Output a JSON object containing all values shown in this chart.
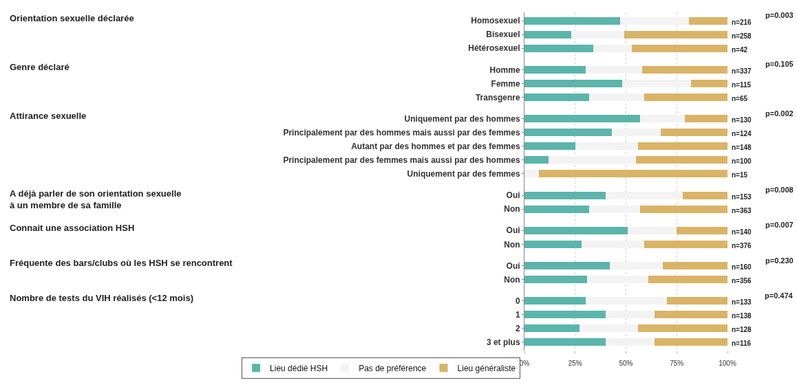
{
  "chart_data": {
    "type": "bar",
    "orientation": "horizontal",
    "stacked": true,
    "categories": [
      "Homosexuel",
      "Bisexuel",
      "Hétérosexuel",
      "Homme",
      "Femme",
      "Transgenre",
      "Uniquement par des hommes",
      "Principalement par des hommes mais aussi par des femmes",
      "Autant par des hommes et par des femmes",
      "Principalement par des femmes mais aussi par des hommes",
      "Uniquement par des femmes",
      "Oui",
      "Non",
      "Oui",
      "Non",
      "Oui",
      "Non",
      "0",
      "1",
      "2",
      "3 et plus"
    ],
    "series": [
      {
        "name": "Lieu dédié HSH",
        "color": "#5bb5ab",
        "values": [
          47,
          23,
          34,
          30,
          48,
          32,
          57,
          43,
          25,
          12,
          0,
          40,
          32,
          51,
          28,
          42,
          31,
          30,
          40,
          27,
          40
        ]
      },
      {
        "name": "Pas de préférence",
        "color": "#f3f3f3",
        "values": [
          34,
          26,
          19,
          28,
          34,
          27,
          22,
          24,
          31,
          43,
          7,
          38,
          25,
          24,
          31,
          26,
          30,
          40,
          24,
          29,
          24
        ]
      },
      {
        "name": "Lieu généraliste",
        "color": "#d9b466",
        "values": [
          19,
          51,
          47,
          42,
          18,
          41,
          21,
          33,
          44,
          45,
          93,
          22,
          43,
          25,
          41,
          32,
          39,
          30,
          36,
          44,
          36
        ]
      }
    ],
    "xlim": [
      0,
      100
    ],
    "xticks": [
      {
        "value": 0,
        "label": "0%"
      },
      {
        "value": 25,
        "label": "25%"
      },
      {
        "value": 50,
        "label": "50%"
      },
      {
        "value": 75,
        "label": "75%"
      },
      {
        "value": 100,
        "label": "100%"
      }
    ],
    "grid": "x",
    "legend": "bottom left",
    "annotations": [
      "Orientation sexuelle déclarée",
      "p=0.003",
      "n=216",
      "n=258",
      "n=42",
      "Genre déclaré",
      "p=0.105",
      "n=337",
      "n=115",
      "n=65",
      "Attirance sexuelle",
      "p=0.002",
      "n=130",
      "n=124",
      "n=148",
      "n=100",
      "n=15",
      "A déjà parler de son orientation sexuelle\nà un membre de sa famille",
      "p=0.008",
      "n=153",
      "n=363",
      "Connait une association HSH",
      "p=0.007",
      "n=140",
      "n=376",
      "Fréquente des bars/clubs où les HSH se rencontrent",
      "p=0.230",
      "n=160",
      "n=356",
      "Nombre de tests du VIH réalisés (<12 mois)",
      "p=0.474",
      "n=133",
      "n=138",
      "n=128",
      "n=116"
    ]
  }
}
